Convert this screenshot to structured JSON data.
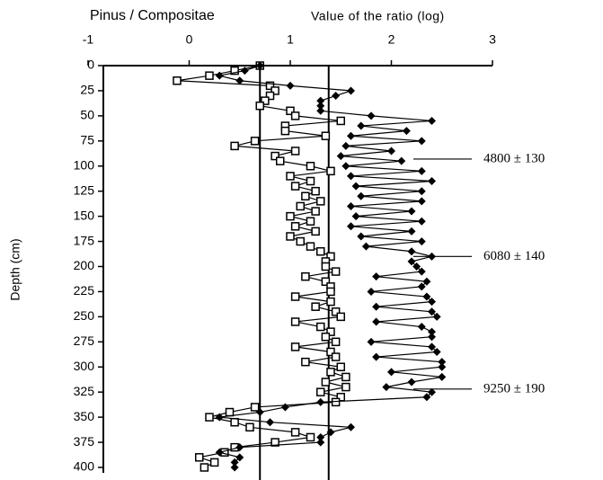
{
  "chart_data": {
    "type": "line",
    "title": "Pinus / Compositae",
    "xlabel": "Value of the ratio (log)",
    "ylabel": "Depth (cm)",
    "xlim": [
      -1,
      3
    ],
    "xticks": [
      -1,
      0,
      1,
      2,
      3
    ],
    "ylim": [
      0,
      400
    ],
    "yticks": [
      0,
      25,
      50,
      75,
      100,
      125,
      150,
      175,
      200,
      225,
      250,
      275,
      300,
      325,
      350,
      375,
      400
    ],
    "y_inverted": true,
    "depth": [
      0,
      5,
      10,
      15,
      20,
      25,
      30,
      35,
      40,
      45,
      50,
      55,
      60,
      65,
      70,
      75,
      80,
      85,
      90,
      95,
      100,
      105,
      110,
      115,
      120,
      125,
      130,
      135,
      140,
      145,
      150,
      155,
      160,
      165,
      170,
      175,
      180,
      185,
      190,
      195,
      200,
      205,
      210,
      215,
      220,
      225,
      230,
      235,
      240,
      245,
      250,
      255,
      260,
      265,
      270,
      275,
      280,
      285,
      290,
      295,
      300,
      305,
      310,
      315,
      320,
      325,
      330,
      335,
      340,
      345,
      350,
      355,
      360,
      365,
      370,
      375,
      380,
      385,
      390,
      395,
      400
    ],
    "series": [
      {
        "marker": "square",
        "color": "#000000",
        "values": [
          0.7,
          0.45,
          0.2,
          -0.12,
          0.8,
          0.85,
          0.8,
          0.75,
          0.7,
          1.0,
          1.05,
          1.5,
          0.95,
          0.95,
          1.35,
          0.65,
          0.45,
          1.05,
          0.85,
          0.9,
          1.2,
          1.4,
          1.0,
          1.2,
          1.05,
          1.25,
          1.15,
          1.3,
          1.1,
          1.25,
          1.0,
          1.2,
          1.05,
          1.25,
          1.0,
          1.1,
          1.2,
          1.3,
          1.4,
          1.35,
          1.35,
          1.45,
          1.15,
          1.35,
          1.4,
          1.4,
          1.05,
          1.4,
          1.25,
          1.45,
          1.5,
          1.05,
          1.3,
          1.4,
          1.35,
          1.45,
          1.05,
          1.4,
          1.45,
          1.15,
          1.5,
          1.4,
          1.55,
          1.35,
          1.55,
          1.3,
          1.5,
          1.45,
          0.65,
          0.4,
          0.2,
          0.45,
          0.6,
          1.05,
          1.2,
          0.85,
          0.45,
          0.35,
          0.1,
          0.25,
          0.15
        ]
      },
      {
        "marker": "diamond",
        "color": "#000000",
        "values": [
          0.7,
          0.55,
          0.3,
          0.5,
          1.0,
          1.6,
          1.45,
          1.3,
          1.3,
          1.3,
          1.8,
          2.4,
          1.7,
          2.15,
          1.6,
          2.3,
          1.55,
          2.0,
          1.5,
          2.1,
          1.55,
          2.3,
          1.6,
          2.4,
          1.65,
          2.3,
          1.7,
          2.3,
          1.6,
          2.2,
          1.65,
          2.3,
          1.6,
          2.2,
          1.7,
          2.3,
          1.75,
          2.2,
          2.4,
          2.2,
          2.25,
          2.3,
          1.85,
          2.35,
          2.3,
          1.8,
          2.35,
          2.4,
          1.85,
          2.4,
          2.45,
          1.85,
          2.3,
          2.4,
          2.4,
          1.8,
          2.4,
          2.45,
          1.85,
          2.5,
          2.5,
          2.0,
          2.5,
          2.2,
          1.95,
          2.4,
          2.35,
          1.3,
          0.95,
          0.7,
          0.3,
          0.8,
          1.6,
          1.4,
          1.3,
          1.3,
          0.5,
          0.3,
          0.5,
          0.45,
          0.45
        ]
      }
    ],
    "reference_lines": [
      0.7,
      1.38
    ],
    "annotations": [
      {
        "text": "4800 ± 130",
        "depth": 93
      },
      {
        "text": "6080 ± 140",
        "depth": 190
      },
      {
        "text": "9250 ± 190",
        "depth": 322
      }
    ]
  }
}
